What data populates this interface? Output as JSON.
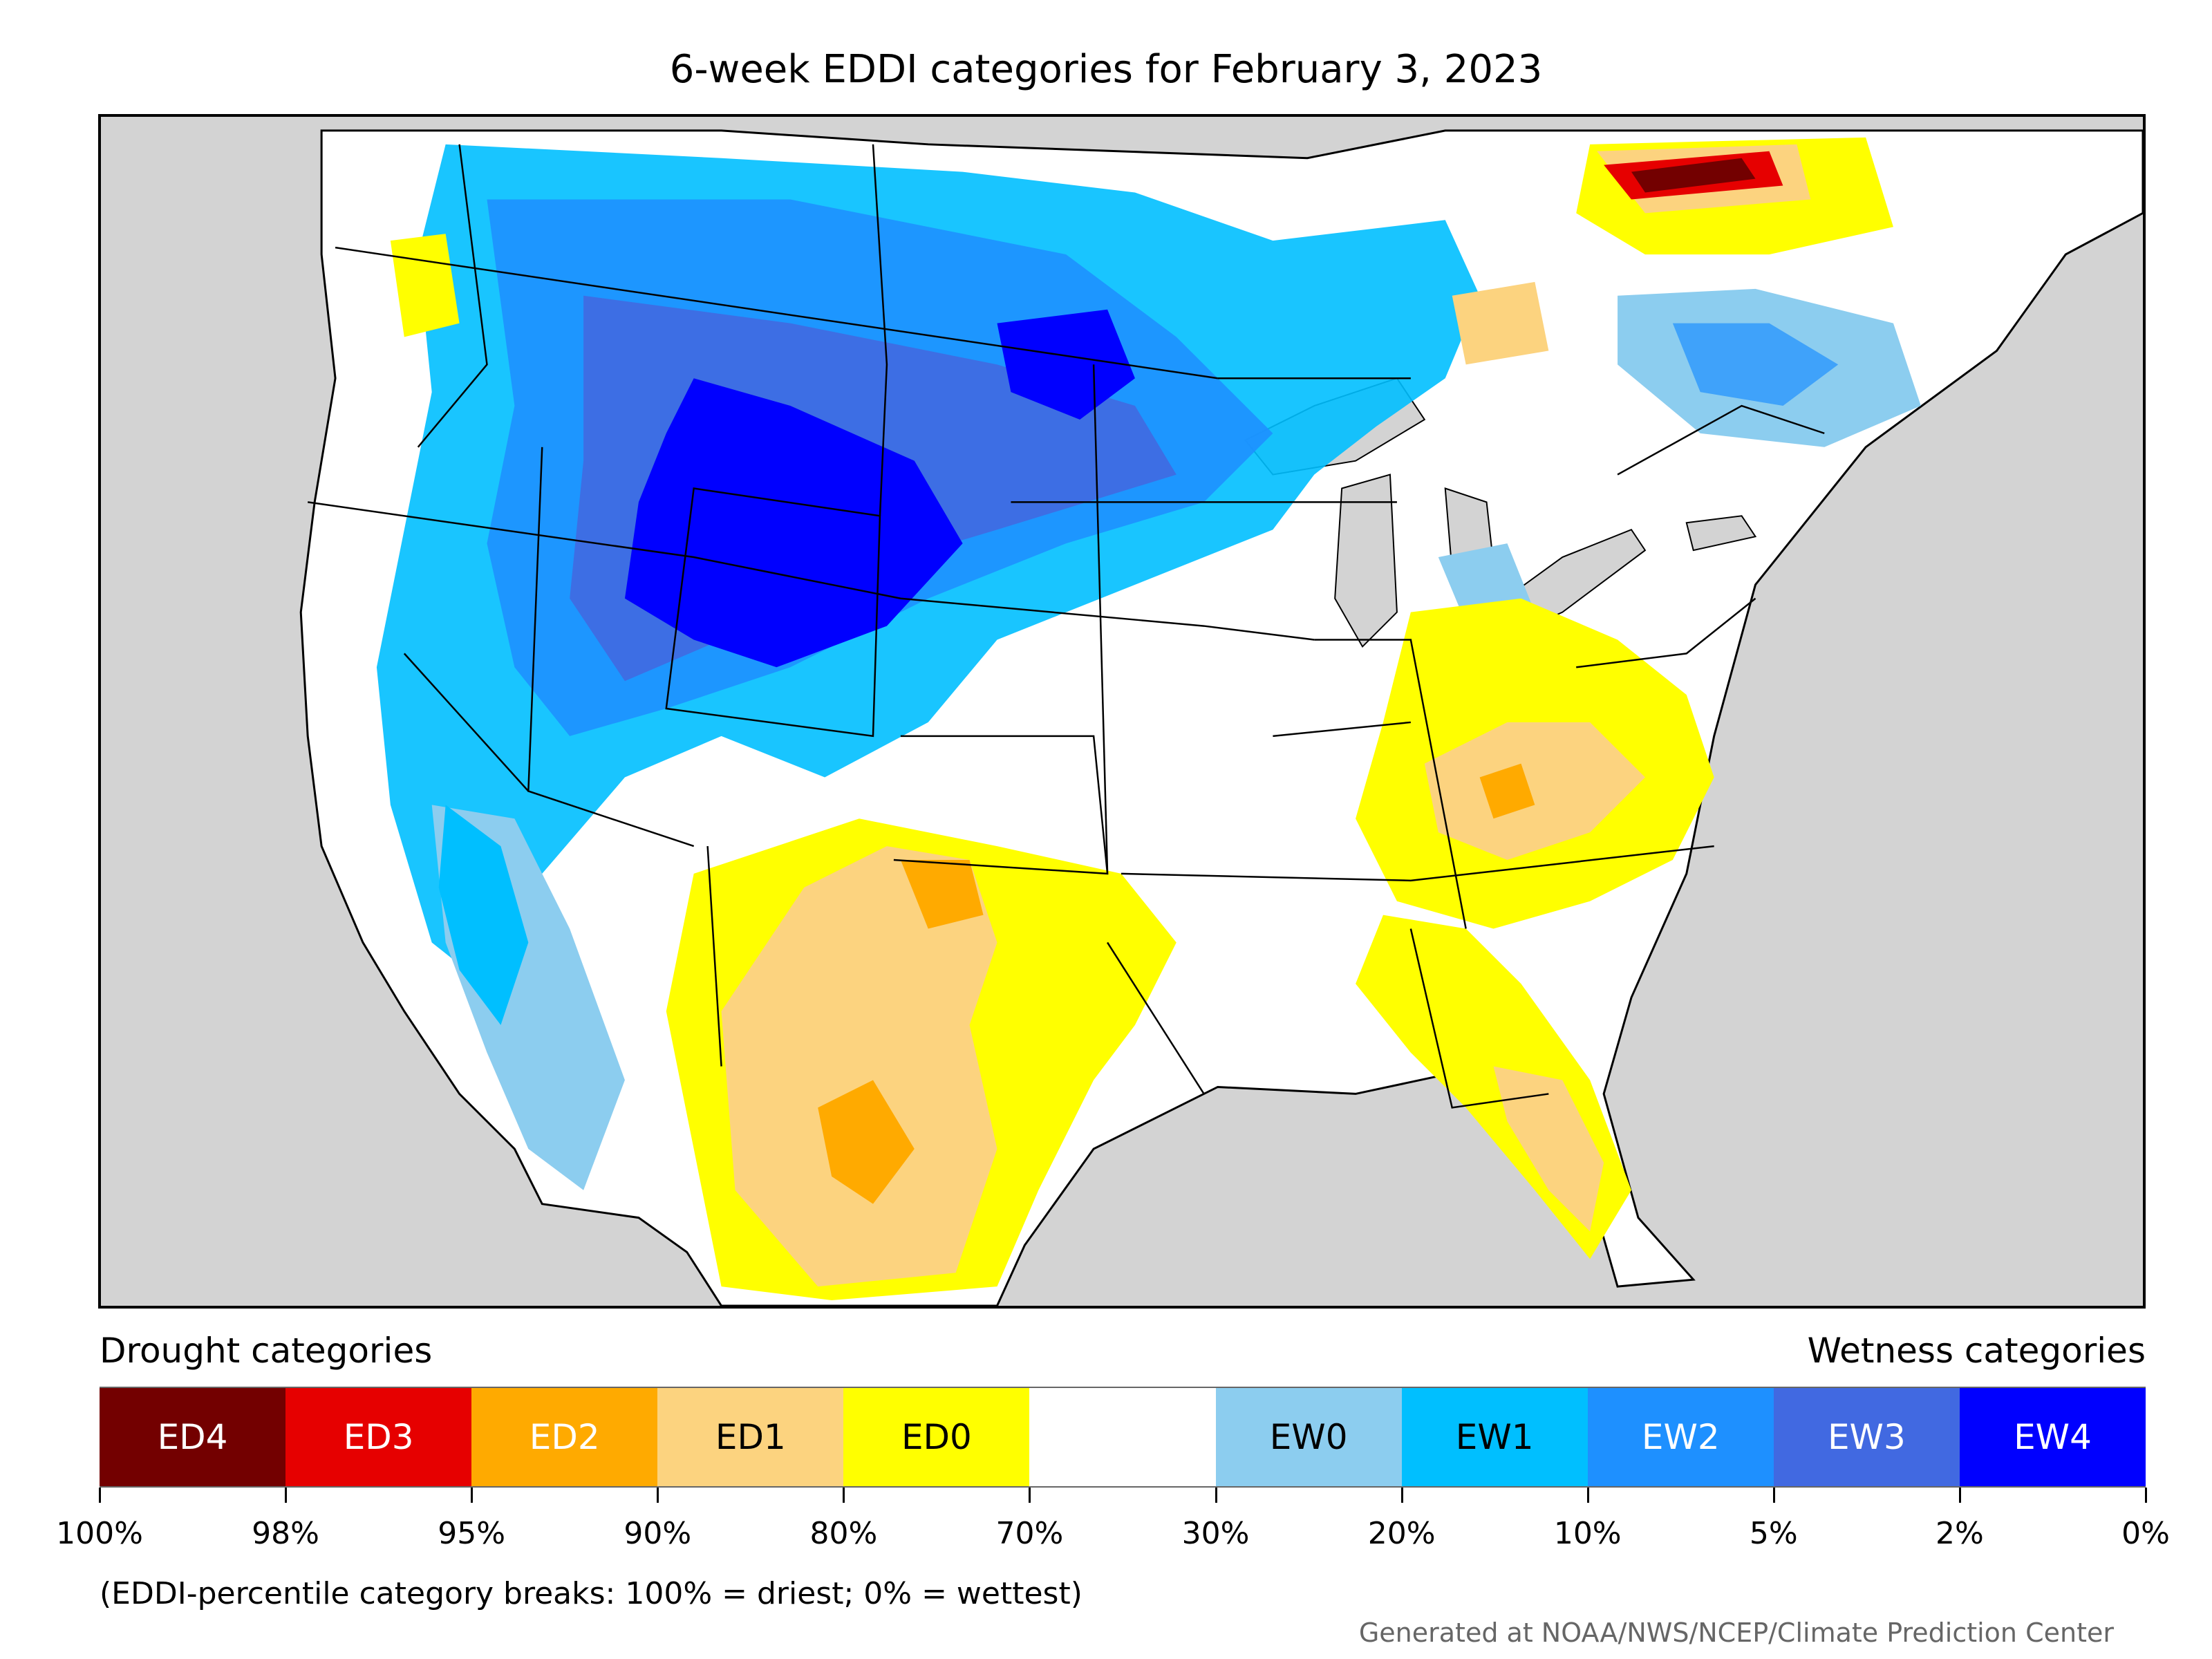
{
  "title": "6-week EDDI categories for February 3, 2023",
  "legend": {
    "drought_label": "Drought categories",
    "wetness_label": "Wetness categories",
    "categories": [
      {
        "label": "ED4",
        "color": "#730000",
        "text_color": "#ffffff"
      },
      {
        "label": "ED3",
        "color": "#e60000",
        "text_color": "#ffffff"
      },
      {
        "label": "ED2",
        "color": "#ffaa00",
        "text_color": "#ffffff"
      },
      {
        "label": "ED1",
        "color": "#fcd37f",
        "text_color": "#000000"
      },
      {
        "label": "ED0",
        "color": "#ffff00",
        "text_color": "#000000"
      },
      {
        "label": "",
        "color": "#ffffff",
        "text_color": "#000000"
      },
      {
        "label": "EW0",
        "color": "#8ccdef",
        "text_color": "#000000"
      },
      {
        "label": "EW1",
        "color": "#00bfff",
        "text_color": "#000000"
      },
      {
        "label": "EW2",
        "color": "#1e90ff",
        "text_color": "#ffffff"
      },
      {
        "label": "EW3",
        "color": "#4169e1",
        "text_color": "#ffffff"
      },
      {
        "label": "EW4",
        "color": "#0000ff",
        "text_color": "#ffffff"
      }
    ],
    "tick_labels": [
      "100%",
      "98%",
      "95%",
      "90%",
      "80%",
      "70%",
      "30%",
      "20%",
      "10%",
      "5%",
      "2%",
      "0%"
    ]
  },
  "note": "(EDDI-percentile category breaks: 100% = driest; 0% = wettest)",
  "credit": "Generated at NOAA/NWS/NCEP/Climate Prediction Center",
  "colors": {
    "ocean_background": "#d3d3d3",
    "land_default": "#ffffff",
    "boundary": "#000000"
  }
}
